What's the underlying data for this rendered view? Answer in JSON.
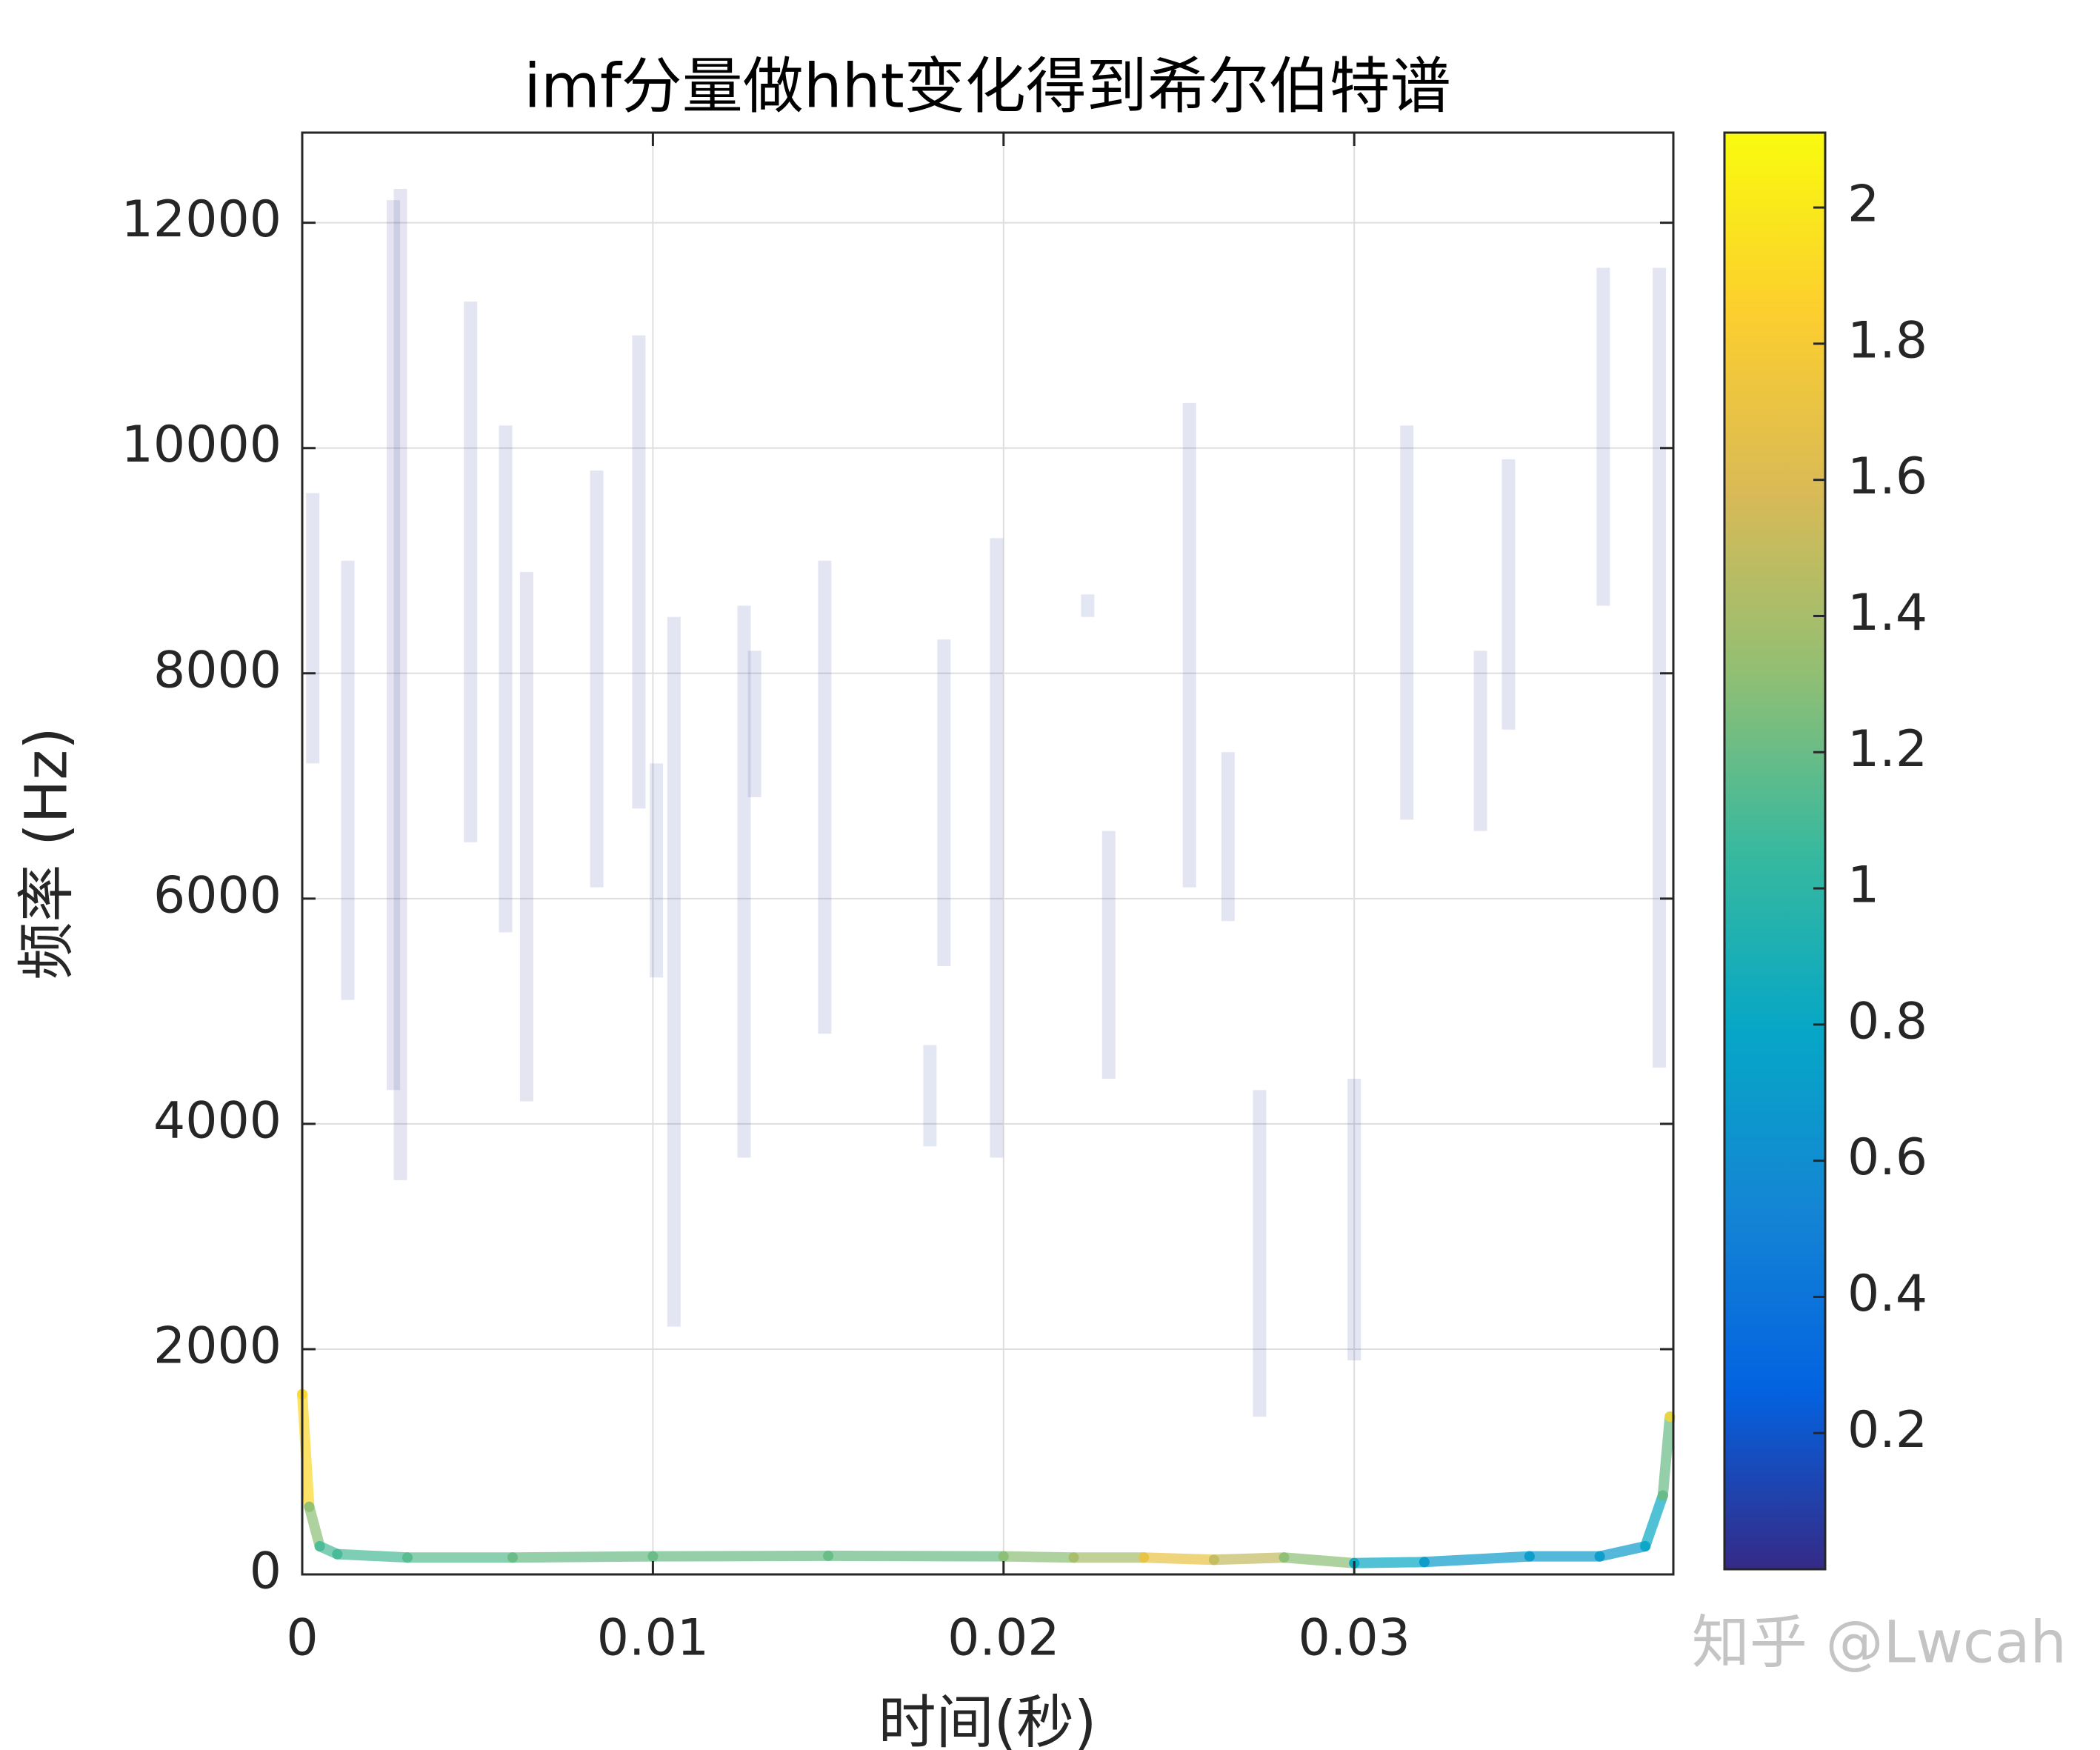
{
  "chart_data": {
    "type": "hilbert-spectrum",
    "title": "imf分量做hht变化得到希尔伯特谱",
    "x_label": "时间(秒)",
    "y_label": "频率 (Hz)",
    "watermark": "知乎 @Lwcah",
    "xlim": [
      0,
      0.0391
    ],
    "ylim": [
      0,
      12800
    ],
    "xticks": [
      0,
      0.01,
      0.02,
      0.03
    ],
    "yticks": [
      0,
      2000,
      4000,
      6000,
      8000,
      10000,
      12000
    ],
    "grid": true,
    "clim": [
      0,
      2.11
    ],
    "cticks": [
      0.2,
      0.4,
      0.6,
      0.8,
      1,
      1.2,
      1.4,
      1.6,
      1.8,
      2
    ],
    "colormap": [
      "#352a87",
      "#0363e1",
      "#1485d4",
      "#06a7c6",
      "#38b99e",
      "#92bf73",
      "#d9ba56",
      "#fcce2e",
      "#f9fb0e"
    ],
    "series": [
      {
        "x": [
          0,
          0.0002,
          0.0005,
          0.001,
          0.003,
          0.006,
          0.01,
          0.015,
          0.02,
          0.022,
          0.024,
          0.026,
          0.028,
          0.03,
          0.032,
          0.035,
          0.037,
          0.0383,
          0.0388,
          0.039
        ],
        "values": [
          1600,
          600,
          250,
          180,
          150,
          150,
          160,
          165,
          160,
          150,
          150,
          130,
          150,
          100,
          110,
          160,
          160,
          250,
          700,
          1400
        ],
        "amplitude": [
          1.9,
          1.3,
          1.1,
          1.1,
          1.15,
          1.2,
          1.2,
          1.2,
          1.3,
          1.4,
          1.7,
          1.5,
          1.3,
          0.8,
          0.7,
          0.7,
          0.7,
          0.8,
          1.2,
          1.9
        ]
      }
    ],
    "bands": {
      "x": [
        0.0003,
        0.0013,
        0.0026,
        0.0028,
        0.0048,
        0.0058,
        0.0064,
        0.0084,
        0.0096,
        0.0101,
        0.0106,
        0.0126,
        0.0129,
        0.0149,
        0.0179,
        0.0183,
        0.0198,
        0.0224,
        0.023,
        0.0253,
        0.0264,
        0.0273,
        0.03,
        0.0315,
        0.0336,
        0.0344,
        0.0371,
        0.0387
      ],
      "low": [
        7200,
        5100,
        4300,
        3500,
        6500,
        5700,
        4200,
        6100,
        6800,
        5300,
        2200,
        3700,
        6900,
        4800,
        3800,
        5400,
        3700,
        8500,
        4400,
        6100,
        5800,
        1400,
        1900,
        6700,
        6600,
        7500,
        8600,
        4500
      ],
      "high": [
        9600,
        9000,
        12200,
        12300,
        11300,
        10200,
        8900,
        9800,
        11000,
        7200,
        8500,
        8600,
        8200,
        9000,
        4700,
        8300,
        9200,
        8700,
        6600,
        10400,
        7300,
        4300,
        4400,
        10200,
        8200,
        9900,
        11600,
        11600
      ],
      "amplitude": [
        0.05,
        0.05,
        0.04,
        0.04,
        0.05,
        0.06,
        0.04,
        0.05,
        0.05,
        0.08,
        0.06,
        0.05,
        0.06,
        0.05,
        0.08,
        0.05,
        0.05,
        0.08,
        0.06,
        0.05,
        0.07,
        0.06,
        0.06,
        0.05,
        0.05,
        0.06,
        0.05,
        0.05
      ]
    }
  }
}
